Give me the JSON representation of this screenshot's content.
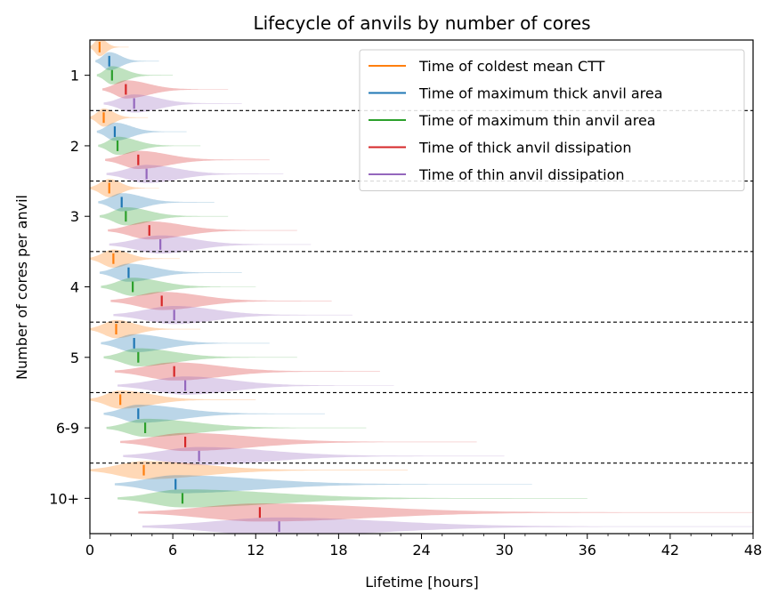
{
  "chart_data": {
    "type": "violin",
    "title": "Lifecycle of anvils by number of cores",
    "xlabel": "Lifetime [hours]",
    "ylabel": "Number of cores per anvil",
    "xlim": [
      0,
      48
    ],
    "xticks": [
      0,
      6,
      12,
      18,
      24,
      30,
      36,
      42,
      48
    ],
    "xtick_labels": [
      "0",
      "6",
      "12",
      "18",
      "24",
      "30",
      "36",
      "42",
      "48"
    ],
    "categories": [
      "1",
      "2",
      "3",
      "4",
      "5",
      "6-9",
      "10+"
    ],
    "legend_position": "upper right",
    "series": [
      {
        "name": "Time of coldest mean CTT",
        "color": "#ff7f0e",
        "medians": [
          0.7,
          1.0,
          1.4,
          1.7,
          1.9,
          2.2,
          3.9
        ],
        "max_extent": [
          2.8,
          4.2,
          5.0,
          6.5,
          8.0,
          12.0,
          23.0
        ],
        "min_extent": [
          0.0,
          0.0,
          0.0,
          0.0,
          0.0,
          0.0,
          0.0
        ]
      },
      {
        "name": "Time of maximum thick anvil area",
        "color": "#1f77b4",
        "medians": [
          1.4,
          1.8,
          2.3,
          2.8,
          3.2,
          3.5,
          6.2
        ],
        "max_extent": [
          5.0,
          7.0,
          9.0,
          11.0,
          13.0,
          17.0,
          32.0
        ],
        "min_extent": [
          0.4,
          0.5,
          0.6,
          0.7,
          0.8,
          1.0,
          1.8
        ]
      },
      {
        "name": "Time of maximum thin anvil area",
        "color": "#2ca02c",
        "medians": [
          1.6,
          2.0,
          2.6,
          3.1,
          3.5,
          4.0,
          6.7
        ],
        "max_extent": [
          6.0,
          8.0,
          10.0,
          12.0,
          15.0,
          20.0,
          36.0
        ],
        "min_extent": [
          0.5,
          0.6,
          0.7,
          0.8,
          1.0,
          1.2,
          2.0
        ]
      },
      {
        "name": "Time of thick anvil dissipation",
        "color": "#d62728",
        "medians": [
          2.6,
          3.5,
          4.3,
          5.2,
          6.1,
          6.9,
          12.3
        ],
        "max_extent": [
          10.0,
          13.0,
          15.0,
          17.5,
          21.0,
          28.0,
          48.0
        ],
        "min_extent": [
          0.9,
          1.1,
          1.3,
          1.5,
          1.8,
          2.2,
          3.5
        ]
      },
      {
        "name": "Time of thin anvil dissipation",
        "color": "#9467bd",
        "medians": [
          3.2,
          4.1,
          5.1,
          6.1,
          6.9,
          7.9,
          13.7
        ],
        "max_extent": [
          11.0,
          14.0,
          16.0,
          19.0,
          22.0,
          30.0,
          48.0
        ],
        "min_extent": [
          1.0,
          1.2,
          1.4,
          1.7,
          2.0,
          2.4,
          3.8
        ]
      }
    ]
  }
}
